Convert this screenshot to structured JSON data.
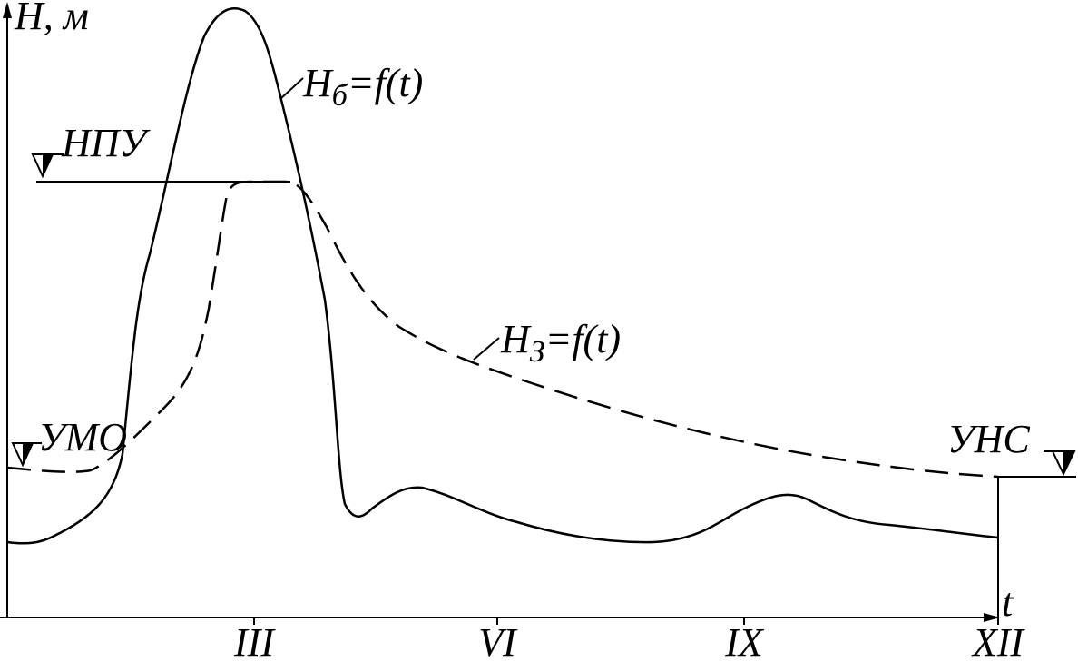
{
  "axes": {
    "y_label": "H, м",
    "x_label": "t",
    "months": [
      "III",
      "VI",
      "IX",
      "XII"
    ]
  },
  "levels": {
    "npu": "НПУ",
    "umo": "УМО",
    "uns": "УНС"
  },
  "curves": {
    "bottom": {
      "main": "H",
      "sub": "б",
      "rest": "=f(t)"
    },
    "top": {
      "main": "H",
      "sub": "З",
      "rest": "=f(t)"
    }
  }
}
